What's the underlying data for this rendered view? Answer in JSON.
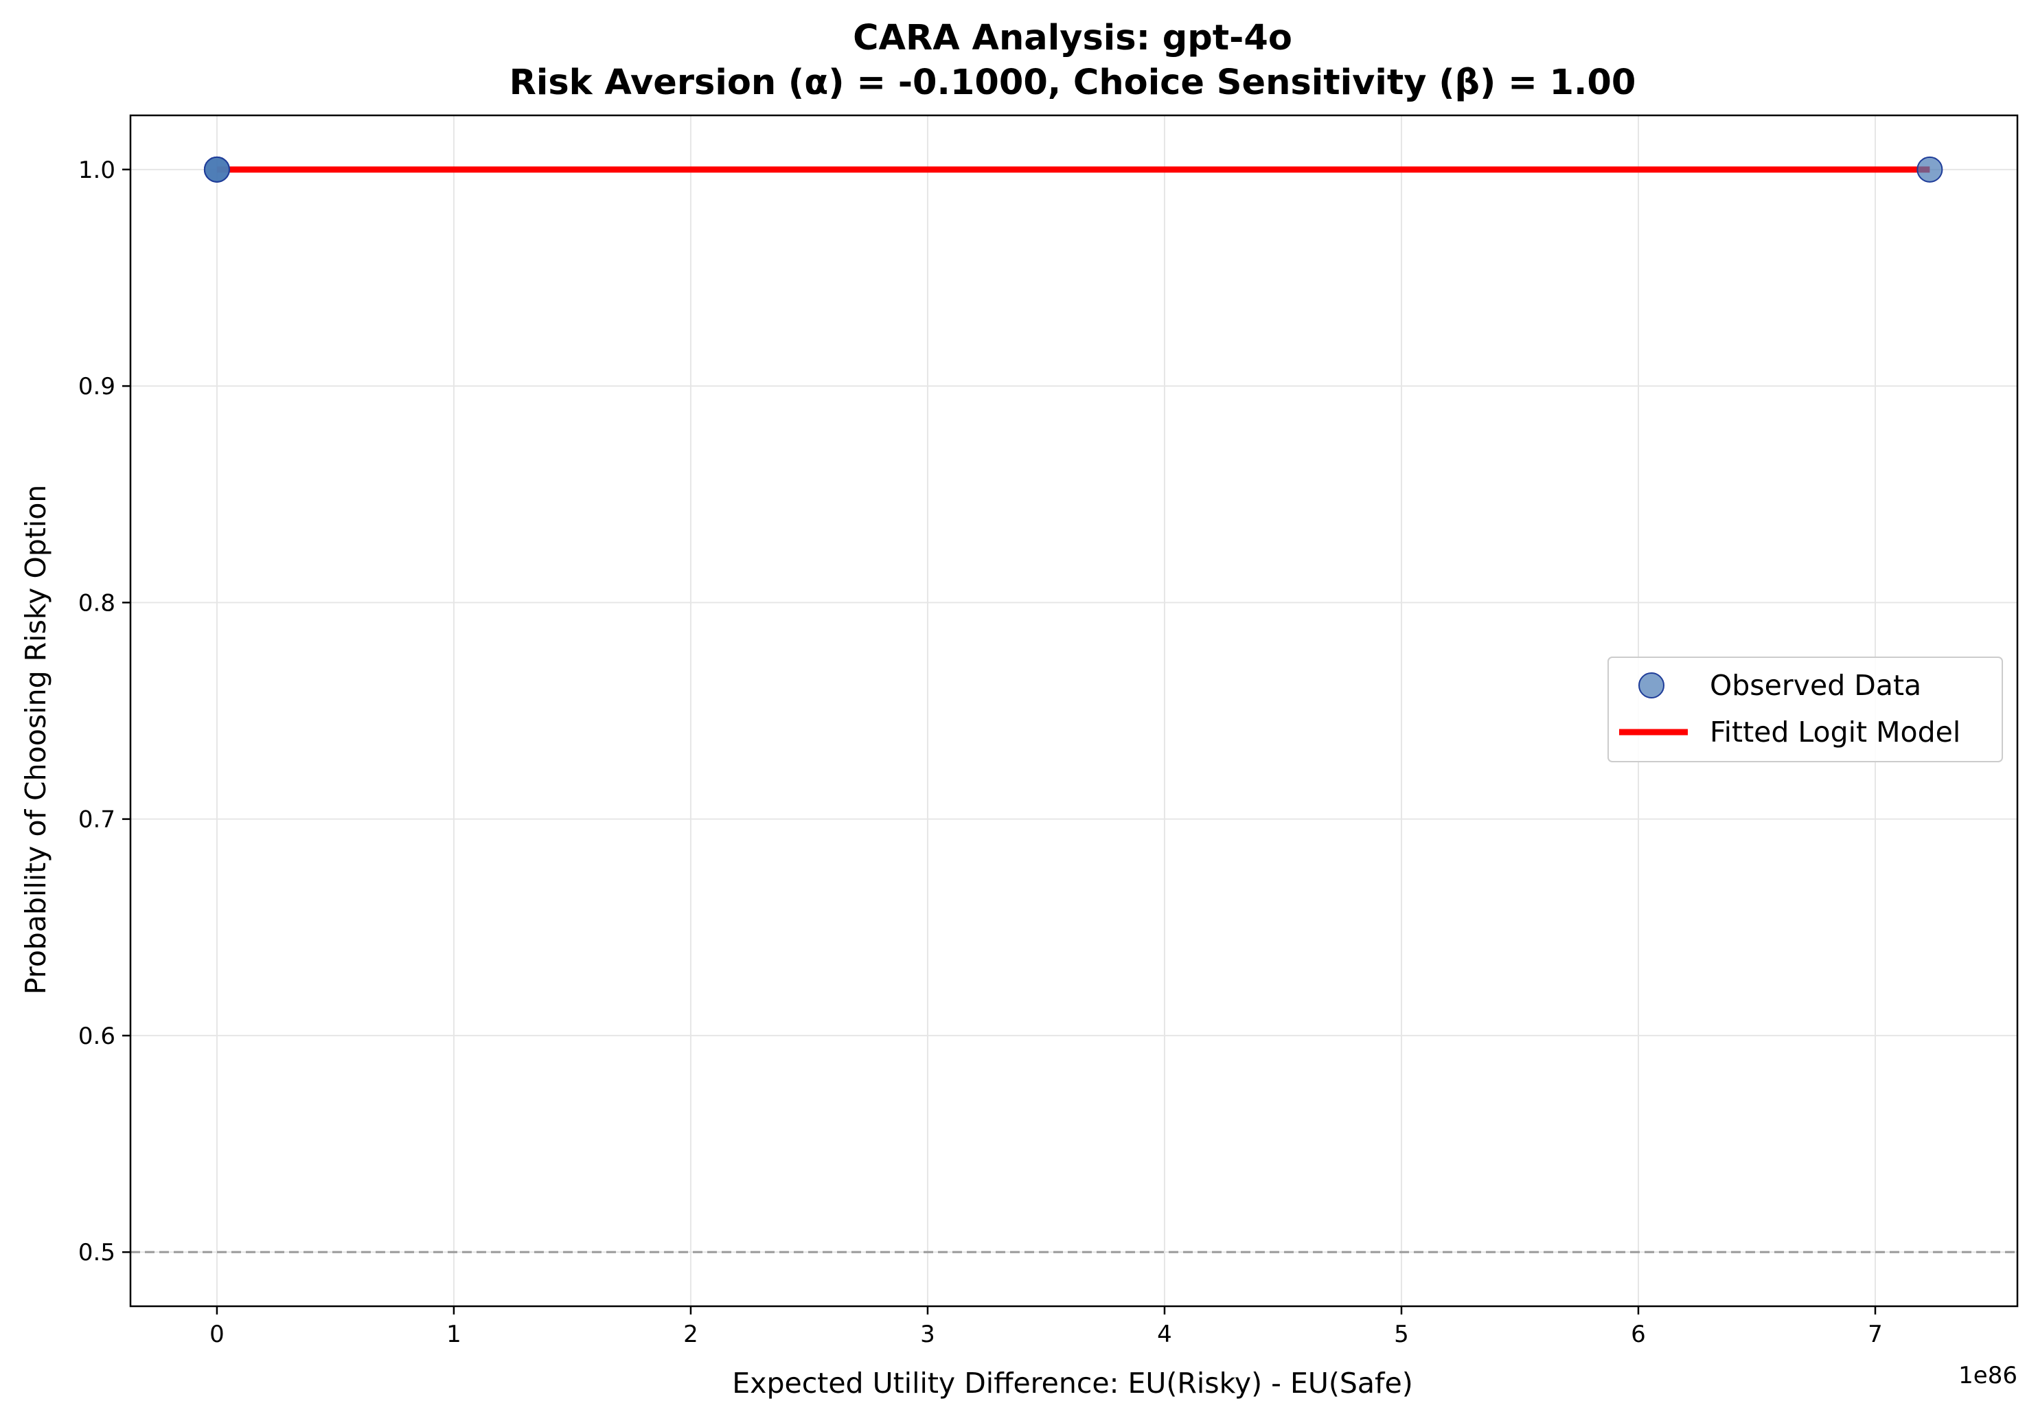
{
  "chart_data": {
    "type": "scatter",
    "title": "CARA Analysis: gpt-4o",
    "subtitle": "Risk Aversion (α) = -0.1000, Choice Sensitivity (β) = 1.00",
    "xlabel": "Expected Utility Difference: EU(Risky) - EU(Safe)",
    "ylabel": "Probability of Choosing Risky Option",
    "x_offset_label": "1e86",
    "xlim": [
      -0.365,
      7.6
    ],
    "ylim": [
      0.475,
      1.025
    ],
    "x_ticks": [
      0,
      1,
      2,
      3,
      4,
      5,
      6,
      7
    ],
    "x_tick_labels": [
      "0",
      "1",
      "2",
      "3",
      "4",
      "5",
      "6",
      "7"
    ],
    "y_ticks": [
      0.5,
      0.6,
      0.7,
      0.8,
      0.9,
      1.0
    ],
    "y_tick_labels": [
      "0.5",
      "0.6",
      "0.7",
      "0.8",
      "0.9",
      "1.0"
    ],
    "grid": true,
    "legend_position": "center-right",
    "reference_line": {
      "y": 0.5,
      "style": "dashed",
      "color": "#999999"
    },
    "series": [
      {
        "name": "Observed Data",
        "kind": "scatter",
        "color": "#4a7ab5",
        "edge_color": "#1f3d99",
        "points": [
          {
            "x": 0,
            "y": 1.0
          },
          {
            "x": 0,
            "y": 1.0
          },
          {
            "x": 0,
            "y": 1.0
          },
          {
            "x": 7.23,
            "y": 1.0
          }
        ]
      },
      {
        "name": "Fitted Logit Model",
        "kind": "line",
        "color": "#ff0000",
        "x": [
          0,
          7.23
        ],
        "y": [
          1.0,
          1.0
        ]
      }
    ]
  }
}
